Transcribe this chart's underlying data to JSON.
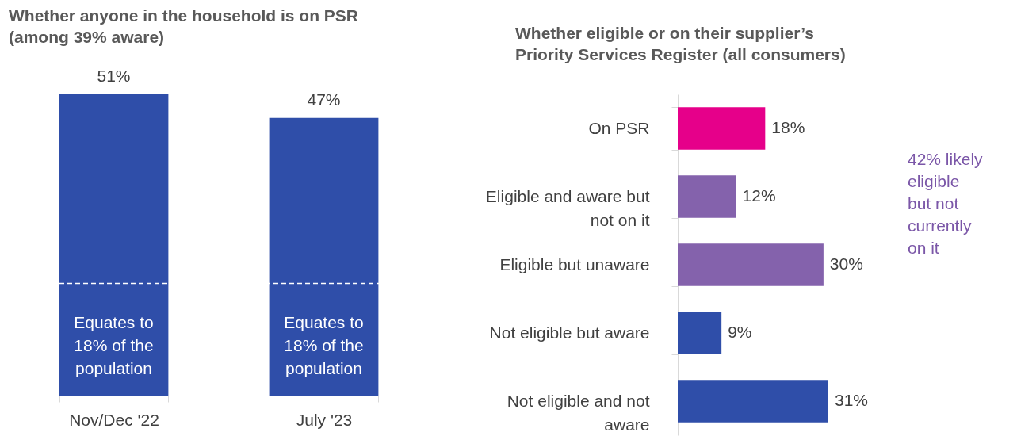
{
  "chart_data": [
    {
      "type": "bar",
      "title": "Whether anyone in the household is on PSR (among 39% aware)",
      "categories": [
        "Nov/Dec '22",
        "July '23"
      ],
      "values": [
        51,
        47
      ],
      "value_labels": [
        "51%",
        "47%"
      ],
      "color": "#2f4ea9",
      "ref_lines": [
        {
          "axis": "y",
          "value": 19,
          "color": "#ffffff",
          "line_style": "dashed"
        }
      ],
      "annotations": [
        "Equates to 18% of the population",
        "Equates to 18% of the population"
      ]
    },
    {
      "type": "bar",
      "orientation": "horizontal",
      "title": "Whether eligible or on their supplier’s Priority Services Register (all consumers)",
      "categories": [
        "On PSR",
        "Eligible and aware but not on it",
        "Eligible but unaware",
        "Not eligible but aware",
        "Not eligible and not aware"
      ],
      "values": [
        18,
        12,
        30,
        9,
        31
      ],
      "value_labels": [
        "18%",
        "12%",
        "30%",
        "9%",
        "31%"
      ],
      "colors": [
        "#e6008a",
        "#8462ac",
        "#8462ac",
        "#2f4ea9",
        "#2f4ea9"
      ],
      "annotations": [
        "42% likely eligible but not currently on it"
      ]
    }
  ]
}
